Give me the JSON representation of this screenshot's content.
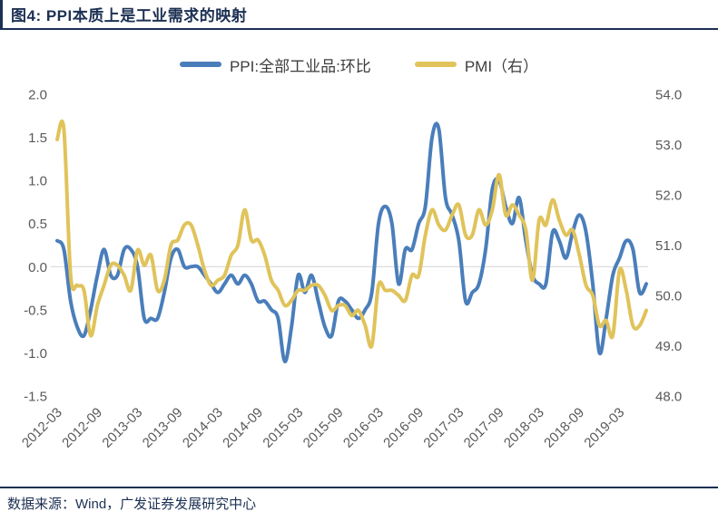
{
  "header": {
    "title": "图4:  PPI本质上是工业需求的映射"
  },
  "legend": [
    {
      "label": "PPI:全部工业品:环比"
    },
    {
      "label": "PMI（右）"
    }
  ],
  "chart_data": {
    "type": "line",
    "title": "图4: PPI本质上是工业需求的映射",
    "frequency": "monthly",
    "x_start": "2012-03",
    "x_end": "2019-07",
    "x_tick_labels": [
      "2012-03",
      "2012-09",
      "2013-03",
      "2013-09",
      "2014-03",
      "2014-09",
      "2015-03",
      "2015-09",
      "2016-03",
      "2016-09",
      "2017-03",
      "2017-09",
      "2018-03",
      "2018-09",
      "2019-03"
    ],
    "left_axis": {
      "min": -1.5,
      "max": 2.0,
      "ticks": [
        "2.0",
        "1.5",
        "1.0",
        "0.5",
        "0.0",
        "-0.5",
        "-1.0",
        "-1.5"
      ]
    },
    "right_axis": {
      "min": 48.0,
      "max": 54.0,
      "ticks": [
        "54.0",
        "53.0",
        "52.0",
        "51.0",
        "50.0",
        "49.0",
        "48.0"
      ]
    },
    "grid": "zero-line-only",
    "legend_position": "top",
    "colors": {
      "ppi": "#4a7ebb",
      "pmi": "#e0c35a",
      "gridline": "#d9d9d9",
      "axis_text": "#595959",
      "accent_navy": "#1c3053"
    },
    "series": [
      {
        "name": "PPI:全部工业品:环比",
        "axis": "left",
        "color": "#4a7ebb",
        "values": [
          0.3,
          0.2,
          -0.4,
          -0.7,
          -0.8,
          -0.5,
          -0.1,
          0.2,
          -0.1,
          -0.1,
          0.2,
          0.2,
          0.0,
          -0.6,
          -0.6,
          -0.6,
          -0.3,
          0.1,
          0.2,
          0.0,
          0.0,
          0.0,
          -0.1,
          -0.2,
          -0.3,
          -0.2,
          -0.1,
          -0.2,
          -0.1,
          -0.2,
          -0.4,
          -0.4,
          -0.5,
          -0.6,
          -1.1,
          -0.7,
          -0.1,
          -0.3,
          -0.1,
          -0.4,
          -0.7,
          -0.8,
          -0.4,
          -0.4,
          -0.5,
          -0.6,
          -0.5,
          -0.3,
          0.5,
          0.7,
          0.5,
          -0.2,
          0.2,
          0.2,
          0.5,
          0.7,
          1.5,
          1.6,
          0.8,
          0.6,
          0.3,
          -0.4,
          -0.3,
          -0.2,
          0.2,
          0.9,
          1.0,
          0.7,
          0.5,
          0.8,
          0.3,
          -0.1,
          -0.2,
          -0.2,
          0.4,
          0.3,
          0.1,
          0.4,
          0.6,
          0.4,
          -0.2,
          -1.0,
          -0.6,
          -0.1,
          0.1,
          0.3,
          0.2,
          -0.3,
          -0.2
        ]
      },
      {
        "name": "PMI（右）",
        "axis": "right",
        "color": "#e0c35a",
        "values": [
          53.1,
          53.3,
          50.4,
          50.2,
          50.1,
          49.2,
          49.8,
          50.2,
          50.6,
          50.6,
          50.4,
          50.1,
          50.9,
          50.6,
          50.8,
          50.1,
          50.3,
          51.0,
          51.1,
          51.4,
          51.4,
          51.0,
          50.5,
          50.2,
          50.3,
          50.4,
          50.8,
          51.0,
          51.7,
          51.1,
          51.1,
          50.8,
          50.3,
          50.1,
          49.8,
          49.9,
          50.1,
          50.1,
          50.2,
          50.2,
          50.0,
          49.7,
          49.8,
          49.8,
          49.6,
          49.7,
          49.4,
          49.0,
          50.2,
          50.1,
          50.1,
          50.0,
          49.9,
          50.4,
          50.4,
          51.2,
          51.7,
          51.4,
          51.3,
          51.6,
          51.8,
          51.2,
          51.2,
          51.7,
          51.4,
          51.7,
          52.4,
          51.6,
          51.8,
          51.6,
          51.3,
          50.3,
          51.5,
          51.4,
          51.9,
          51.5,
          51.2,
          51.3,
          50.8,
          50.2,
          50.0,
          49.4,
          49.5,
          49.2,
          50.5,
          50.1,
          49.4,
          49.4,
          49.7
        ]
      }
    ]
  },
  "footer": {
    "source": "数据来源：Wind，广发证券发展研究中心"
  }
}
